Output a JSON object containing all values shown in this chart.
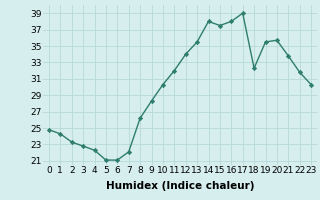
{
  "x": [
    0,
    1,
    2,
    3,
    4,
    5,
    6,
    7,
    8,
    9,
    10,
    11,
    12,
    13,
    14,
    15,
    16,
    17,
    18,
    19,
    20,
    21,
    22,
    23
  ],
  "y": [
    24.8,
    24.3,
    23.3,
    22.8,
    22.3,
    21.1,
    21.1,
    22.1,
    26.2,
    28.3,
    30.3,
    32.0,
    34.0,
    35.5,
    38.0,
    37.5,
    38.0,
    39.0,
    32.3,
    35.5,
    35.7,
    33.8,
    31.8,
    30.3
  ],
  "line_color": "#2e7d6e",
  "marker": "D",
  "marker_size": 2.2,
  "bg_color": "#d6eeee",
  "grid_color": "#b8d8d8",
  "xlabel": "Humidex (Indice chaleur)",
  "ylabel_ticks": [
    21,
    23,
    25,
    27,
    29,
    31,
    33,
    35,
    37,
    39
  ],
  "xlim": [
    -0.5,
    23.5
  ],
  "ylim": [
    20.5,
    40.0
  ],
  "xticks": [
    0,
    1,
    2,
    3,
    4,
    5,
    6,
    7,
    8,
    9,
    10,
    11,
    12,
    13,
    14,
    15,
    16,
    17,
    18,
    19,
    20,
    21,
    22,
    23
  ],
  "xtick_labels": [
    "0",
    "1",
    "2",
    "3",
    "4",
    "5",
    "6",
    "7",
    "8",
    "9",
    "10",
    "11",
    "12",
    "13",
    "14",
    "15",
    "16",
    "17",
    "18",
    "19",
    "20",
    "21",
    "22",
    "23"
  ],
  "font_size": 6.5,
  "xlabel_fontsize": 7.5,
  "linewidth": 1.0
}
